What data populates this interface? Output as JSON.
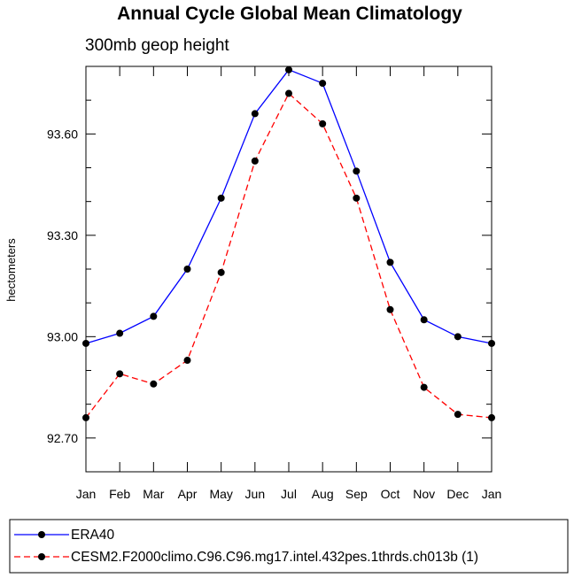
{
  "chart_data": {
    "type": "line",
    "title": "Annual Cycle Global Mean Climatology",
    "subtitle": "300mb geop height",
    "xlabel": "",
    "ylabel": "hectometers",
    "categories": [
      "Jan",
      "Feb",
      "Mar",
      "Apr",
      "May",
      "Jun",
      "Jul",
      "Aug",
      "Sep",
      "Oct",
      "Nov",
      "Dec",
      "Jan"
    ],
    "ylim": [
      92.6,
      93.8
    ],
    "yticks": [
      92.7,
      93.0,
      93.3,
      93.6
    ],
    "ytick_labels": [
      "92.70",
      "93.00",
      "93.30",
      "93.60"
    ],
    "grid": false,
    "legend_position": "bottom",
    "series": [
      {
        "name": "ERA40",
        "color": "#0000ff",
        "dash": "solid",
        "values": [
          92.98,
          93.01,
          93.06,
          93.2,
          93.41,
          93.66,
          93.79,
          93.75,
          93.49,
          93.22,
          93.05,
          93.0,
          92.98
        ]
      },
      {
        "name": "CESM2.F2000climo.C96.C96.mg17.intel.432pes.1thrds.ch013b (1)",
        "color": "#ff0000",
        "dash": "dashed",
        "values": [
          92.76,
          92.89,
          92.86,
          92.93,
          93.19,
          93.52,
          93.72,
          93.63,
          93.41,
          93.08,
          92.85,
          92.77,
          92.76
        ]
      }
    ]
  }
}
